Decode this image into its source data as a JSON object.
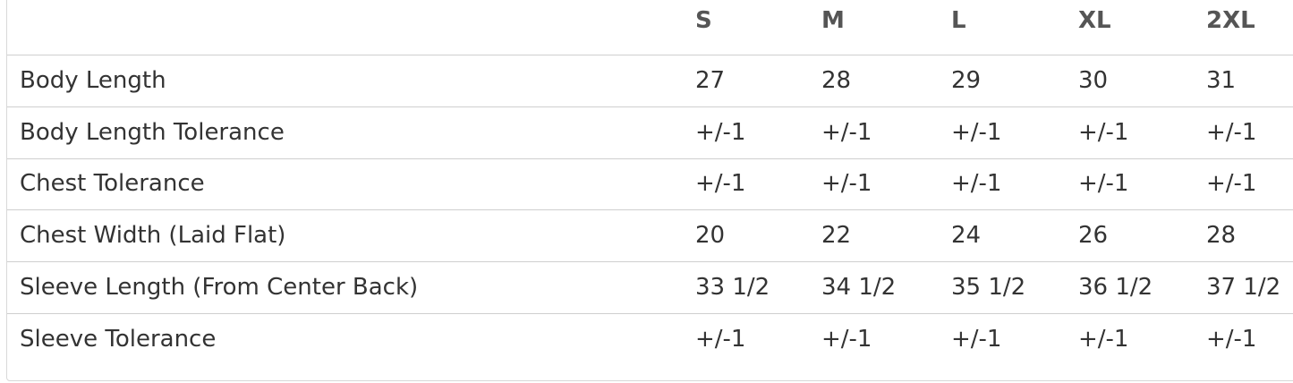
{
  "table": {
    "header": [
      "S",
      "M",
      "L",
      "XL",
      "2XL"
    ],
    "rows": [
      [
        "Body Length",
        "27",
        "28",
        "29",
        "30",
        "31"
      ],
      [
        "Body Length Tolerance",
        "+/-1",
        "+/-1",
        "+/-1",
        "+/-1",
        "+/-1"
      ],
      [
        "Chest Tolerance",
        "+/-1",
        "+/-1",
        "+/-1",
        "+/-1",
        "+/-1"
      ],
      [
        "Chest Width (Laid Flat)",
        "20",
        "22",
        "24",
        "26",
        "28"
      ],
      [
        "Sleeve Length (From Center Back)",
        "33 1/2",
        "34 1/2",
        "35 1/2",
        "36 1/2",
        "37 1/2"
      ],
      [
        "Sleeve Tolerance",
        "+/-1",
        "+/-1",
        "+/-1",
        "+/-1",
        "+/-1"
      ]
    ]
  }
}
